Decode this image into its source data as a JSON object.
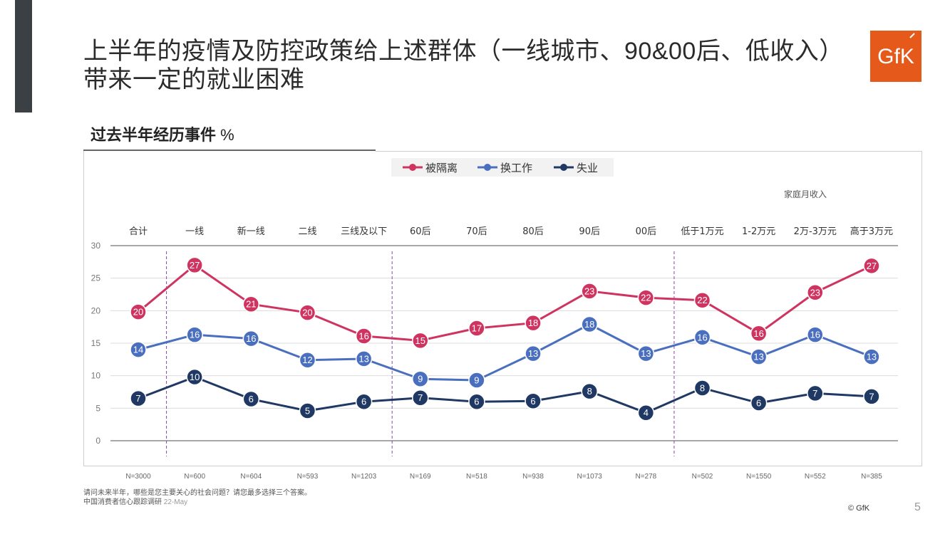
{
  "title": {
    "line1": "上半年的疫情及防控政策给上述群体（一线城市、90&00后、低收入）",
    "line2": "带来一定的就业困难"
  },
  "subtitle": {
    "text": "过去半年经历事件",
    "unit": "%"
  },
  "logo": {
    "text": "GfK",
    "color": "#e55a1b"
  },
  "chart_data": {
    "type": "line",
    "categories": [
      "合计",
      "一线",
      "新一线",
      "二线",
      "三线及以下",
      "60后",
      "70后",
      "80后",
      "90后",
      "00后",
      "低于1万元",
      "1-2万元",
      "2万-3万元",
      "高于3万元"
    ],
    "sample_sizes": [
      "N=3000",
      "N=600",
      "N=604",
      "N=593",
      "N=1203",
      "N=169",
      "N=518",
      "N=938",
      "N=1073",
      "N=278",
      "N=502",
      "N=1550",
      "N=552",
      "N=385"
    ],
    "group_label": "家庭月收入",
    "series": [
      {
        "name": "被隔离",
        "color": "#cf3461",
        "values": [
          19.8,
          27.0,
          21.0,
          19.7,
          16.1,
          15.4,
          17.3,
          18.1,
          23.0,
          22.0,
          21.6,
          16.5,
          22.8,
          26.9
        ],
        "labels": [
          "20",
          "27",
          "21",
          "20",
          "16",
          "15",
          "17",
          "18",
          "23",
          "22",
          "22",
          "16",
          "23",
          "27"
        ]
      },
      {
        "name": "换工作",
        "color": "#4a6fbf",
        "values": [
          14.0,
          16.3,
          15.7,
          12.4,
          12.6,
          9.5,
          9.3,
          13.4,
          17.9,
          13.4,
          15.9,
          12.9,
          16.3,
          12.9
        ],
        "labels": [
          "14",
          "16",
          "16",
          "12",
          "13",
          "9",
          "9",
          "13",
          "18",
          "13",
          "16",
          "13",
          "16",
          "13"
        ]
      },
      {
        "name": "失业",
        "color": "#203864",
        "values": [
          6.5,
          9.8,
          6.4,
          4.6,
          6.0,
          6.6,
          6.0,
          6.1,
          7.6,
          4.3,
          8.1,
          5.8,
          7.3,
          6.8
        ],
        "labels": [
          "7",
          "10",
          "6",
          "5",
          "6",
          "7",
          "6",
          "6",
          "8",
          "4",
          "8",
          "6",
          "7",
          "7"
        ]
      }
    ],
    "y_ticks": [
      "0",
      "5",
      "10",
      "15",
      "20",
      "25",
      "30"
    ],
    "ylim": [
      0,
      30
    ],
    "group_separators_after": [
      0,
      4,
      9
    ],
    "legend_position": "top-center"
  },
  "footnotes": {
    "question": "请问未来半年，哪些是您主要关心的社会问题？请您最多选择三个答案。",
    "source": "中国消费者信心跟踪调研",
    "date": "22-May"
  },
  "copyright": "© GfK",
  "page_number": "5"
}
